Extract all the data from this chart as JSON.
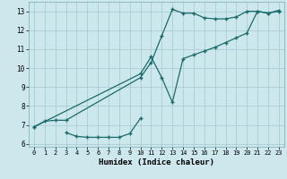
{
  "xlabel": "Humidex (Indice chaleur)",
  "bg_color": "#cce8ec",
  "grid_color": "#aacdd4",
  "line_color": "#1a6b6b",
  "xlim": [
    -0.5,
    23.5
  ],
  "ylim": [
    5.85,
    13.5
  ],
  "xticks": [
    0,
    1,
    2,
    3,
    4,
    5,
    6,
    7,
    8,
    9,
    10,
    11,
    12,
    13,
    14,
    15,
    16,
    17,
    18,
    19,
    20,
    21,
    22,
    23
  ],
  "yticks": [
    6,
    7,
    8,
    9,
    10,
    11,
    12,
    13
  ],
  "line1_x": [
    0,
    1,
    2,
    3,
    10,
    11,
    12,
    13,
    14,
    15,
    16,
    17,
    18,
    19,
    20,
    21,
    22,
    23
  ],
  "line1_y": [
    6.9,
    7.2,
    7.25,
    7.25,
    9.5,
    10.3,
    11.7,
    13.1,
    12.9,
    12.9,
    12.65,
    12.6,
    12.6,
    12.7,
    13.0,
    13.0,
    12.9,
    13.0
  ],
  "line2_x": [
    0,
    10,
    11,
    12,
    13,
    14,
    15,
    16,
    17,
    18,
    19,
    20,
    21,
    22,
    23
  ],
  "line2_y": [
    6.9,
    9.7,
    10.6,
    9.5,
    8.2,
    10.5,
    10.7,
    10.9,
    11.1,
    11.35,
    11.6,
    11.85,
    13.0,
    12.9,
    13.05
  ],
  "line3_x": [
    3,
    4,
    5,
    6,
    7,
    8,
    9,
    10
  ],
  "line3_y": [
    6.6,
    6.4,
    6.35,
    6.35,
    6.35,
    6.35,
    6.55,
    7.35
  ]
}
